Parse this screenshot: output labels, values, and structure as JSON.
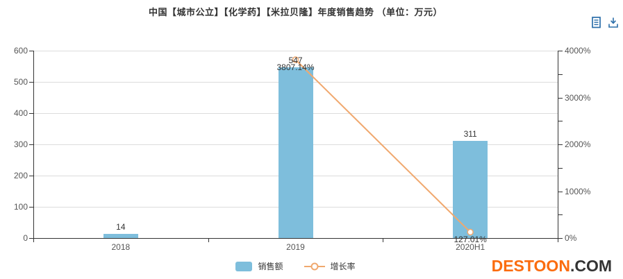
{
  "title": "中国【城市公立】【化学药】【米拉贝隆】年度销售趋势 （单位：万元）",
  "toolbox": {
    "icons": [
      {
        "name": "data-view-icon"
      },
      {
        "name": "download-icon"
      }
    ],
    "icon_color": "#2b6ea9"
  },
  "legend": {
    "items": [
      {
        "label": "销售额",
        "type": "bar"
      },
      {
        "label": "增长率",
        "type": "line"
      }
    ]
  },
  "watermark": {
    "brand": "DESTOON",
    "suffix": ".COM"
  },
  "colors": {
    "bar": "#7ebedc",
    "line": "#f0a86e",
    "axis": "#333333",
    "grid": "#dcdcdc",
    "tick_text": "#555555",
    "label_text": "#333333",
    "watermark_orange": "#fb6c0f",
    "watermark_dark": "#333333"
  },
  "chart_data": {
    "type": "bar",
    "subtype": "combo-bar-line-dual-axis",
    "title": "中国【城市公立】【化学药】【米拉贝隆】年度销售趋势（单位：万元）",
    "categories": [
      "2018",
      "2019",
      "2020H1"
    ],
    "series": [
      {
        "name": "销售额",
        "type": "bar",
        "y_axis": "left",
        "values": [
          14,
          547,
          311
        ],
        "data_labels": [
          "14",
          "547",
          "311"
        ]
      },
      {
        "name": "增长率",
        "type": "line",
        "y_axis": "right",
        "values": [
          null,
          3807.14,
          127.01
        ],
        "data_labels": [
          "",
          "3807.14%",
          "127.01%"
        ]
      }
    ],
    "y_axis_left": {
      "min": 0,
      "max": 600,
      "tick_labels": [
        "0",
        "100",
        "200",
        "300",
        "400",
        "500",
        "600"
      ]
    },
    "y_axis_right": {
      "min": 0,
      "max": 4000,
      "tick_labels": [
        "0%",
        "1000%",
        "2000%",
        "3000%",
        "4000%"
      ],
      "minor_tick_intervals": 8
    },
    "grid": true,
    "legend_position": "bottom"
  }
}
